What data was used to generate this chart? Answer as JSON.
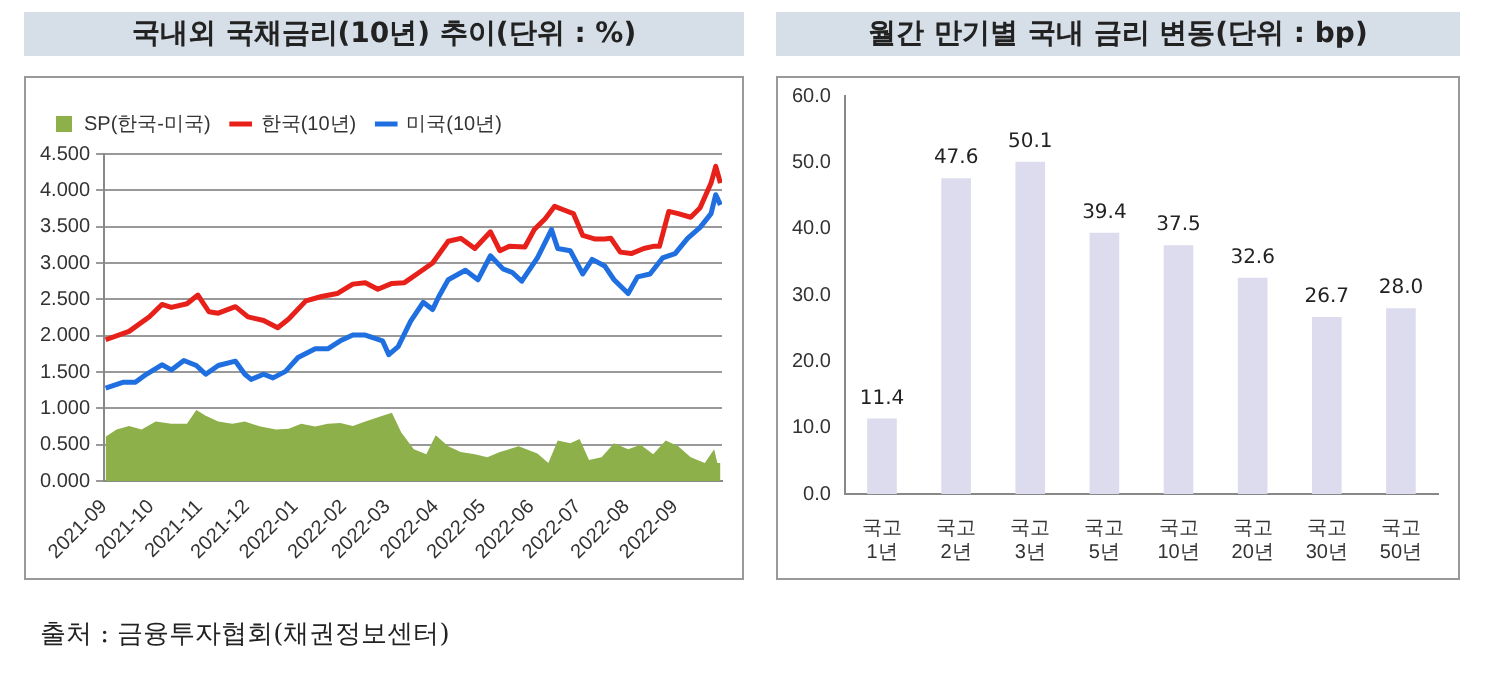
{
  "chart_data": [
    {
      "type": "line",
      "title": "국내외 국채금리(10년) 추이(단위 : %)",
      "xlim": [
        "2021-09-01",
        "2022-10-01"
      ],
      "xticks": [
        "2021-09",
        "2021-10",
        "2021-11",
        "2021-12",
        "2022-01",
        "2022-02",
        "2022-03",
        "2022-04",
        "2022-05",
        "2022-06",
        "2022-07",
        "2022-08",
        "2022-09"
      ],
      "ylim": [
        0,
        4.5
      ],
      "yticks": [
        {
          "value": 0,
          "label": "0.000"
        },
        {
          "value": 0.5,
          "label": "0.500"
        },
        {
          "value": 1,
          "label": "1.000"
        },
        {
          "value": 1.5,
          "label": "1.500"
        },
        {
          "value": 2,
          "label": "2.000"
        },
        {
          "value": 2.5,
          "label": "2.500"
        },
        {
          "value": 3,
          "label": "3.000"
        },
        {
          "value": 3.5,
          "label": "3.500"
        },
        {
          "value": 4,
          "label": "4.000"
        },
        {
          "value": 4.5,
          "label": "4.500"
        }
      ],
      "grid": "y",
      "legend": "top left",
      "marker": "none",
      "annotations": [
        "출처 : 금융투자협회(채권정보센터)"
      ],
      "series": [
        {
          "name": "SP(한국-미국)",
          "type": "area",
          "color": "#8db04a",
          "x": [
            "2021-09-02",
            "2021-09-09",
            "2021-09-17",
            "2021-09-25",
            "2021-10-04",
            "2021-10-14",
            "2021-10-24",
            "2021-10-30",
            "2021-11-05",
            "2021-11-13",
            "2021-11-22",
            "2021-11-30",
            "2021-12-10",
            "2021-12-20",
            "2021-12-28",
            "2022-01-05",
            "2022-01-14",
            "2022-01-22",
            "2022-01-30",
            "2022-02-07",
            "2022-02-15",
            "2022-02-26",
            "2022-03-04",
            "2022-03-10",
            "2022-03-18",
            "2022-03-26",
            "2022-04-01",
            "2022-04-09",
            "2022-04-17",
            "2022-04-26",
            "2022-05-04",
            "2022-05-12",
            "2022-05-24",
            "2022-06-05",
            "2022-06-12",
            "2022-06-18",
            "2022-06-26",
            "2022-07-02",
            "2022-07-08",
            "2022-07-16",
            "2022-07-24",
            "2022-08-02",
            "2022-08-10",
            "2022-08-18",
            "2022-08-26",
            "2022-09-03",
            "2022-09-11",
            "2022-09-20",
            "2022-09-26",
            "2022-09-28",
            "2022-09-30"
          ],
          "values": [
            0.61,
            0.71,
            0.76,
            0.71,
            0.82,
            0.79,
            0.79,
            0.98,
            0.9,
            0.82,
            0.79,
            0.82,
            0.75,
            0.71,
            0.72,
            0.79,
            0.75,
            0.79,
            0.8,
            0.76,
            0.82,
            0.9,
            0.94,
            0.67,
            0.44,
            0.37,
            0.63,
            0.48,
            0.4,
            0.37,
            0.33,
            0.4,
            0.48,
            0.38,
            0.25,
            0.56,
            0.52,
            0.58,
            0.29,
            0.33,
            0.52,
            0.44,
            0.5,
            0.37,
            0.56,
            0.48,
            0.33,
            0.25,
            0.44,
            0.25,
            0.25
          ]
        },
        {
          "name": "한국(10년)",
          "type": "line",
          "color": "#e8201a",
          "x": [
            "2021-09-02",
            "2021-09-17",
            "2021-09-30",
            "2021-10-08",
            "2021-10-14",
            "2021-10-24",
            "2021-10-31",
            "2021-11-07",
            "2021-11-13",
            "2021-11-24",
            "2021-12-02",
            "2021-12-12",
            "2021-12-21",
            "2021-12-28",
            "2022-01-08",
            "2022-01-18",
            "2022-01-28",
            "2022-02-07",
            "2022-02-15",
            "2022-02-23",
            "2022-03-04",
            "2022-03-12",
            "2022-03-20",
            "2022-03-30",
            "2022-04-09",
            "2022-04-17",
            "2022-04-26",
            "2022-05-06",
            "2022-05-12",
            "2022-05-18",
            "2022-05-28",
            "2022-06-03",
            "2022-06-10",
            "2022-06-16",
            "2022-06-22",
            "2022-06-28",
            "2022-07-04",
            "2022-07-12",
            "2022-07-18",
            "2022-07-22",
            "2022-07-28",
            "2022-08-04",
            "2022-08-12",
            "2022-08-18",
            "2022-08-22",
            "2022-08-28",
            "2022-09-03",
            "2022-09-11",
            "2022-09-17",
            "2022-09-24",
            "2022-09-27",
            "2022-09-30"
          ],
          "values": [
            1.945,
            2.06,
            2.26,
            2.43,
            2.39,
            2.44,
            2.56,
            2.33,
            2.31,
            2.4,
            2.26,
            2.21,
            2.11,
            2.23,
            2.48,
            2.54,
            2.58,
            2.71,
            2.73,
            2.64,
            2.72,
            2.73,
            2.85,
            3.0,
            3.3,
            3.34,
            3.2,
            3.43,
            3.17,
            3.23,
            3.22,
            3.46,
            3.61,
            3.78,
            3.73,
            3.68,
            3.38,
            3.33,
            3.33,
            3.34,
            3.15,
            3.13,
            3.2,
            3.23,
            3.23,
            3.71,
            3.68,
            3.63,
            3.76,
            4.1,
            4.33,
            4.1
          ]
        },
        {
          "name": "미국(10년)",
          "type": "line",
          "color": "#1f6fe0",
          "x": [
            "2021-09-02",
            "2021-09-13",
            "2021-09-21",
            "2021-09-28",
            "2021-10-08",
            "2021-10-14",
            "2021-10-22",
            "2021-10-30",
            "2021-11-05",
            "2021-11-13",
            "2021-11-24",
            "2021-11-30",
            "2021-12-04",
            "2021-12-12",
            "2021-12-18",
            "2021-12-26",
            "2022-01-03",
            "2022-01-14",
            "2022-01-22",
            "2022-01-30",
            "2022-02-07",
            "2022-02-15",
            "2022-02-26",
            "2022-03-02",
            "2022-03-08",
            "2022-03-16",
            "2022-03-24",
            "2022-03-30",
            "2022-04-03",
            "2022-04-09",
            "2022-04-20",
            "2022-04-28",
            "2022-05-06",
            "2022-05-14",
            "2022-05-20",
            "2022-05-26",
            "2022-06-05",
            "2022-06-14",
            "2022-06-18",
            "2022-06-26",
            "2022-07-04",
            "2022-07-10",
            "2022-07-18",
            "2022-07-24",
            "2022-08-02",
            "2022-08-08",
            "2022-08-16",
            "2022-08-24",
            "2022-09-01",
            "2022-09-09",
            "2022-09-17",
            "2022-09-24",
            "2022-09-27",
            "2022-09-30"
          ],
          "values": [
            1.28,
            1.36,
            1.36,
            1.47,
            1.6,
            1.53,
            1.66,
            1.59,
            1.47,
            1.59,
            1.65,
            1.47,
            1.4,
            1.47,
            1.42,
            1.51,
            1.7,
            1.82,
            1.82,
            1.93,
            2.01,
            2.01,
            1.93,
            1.74,
            1.85,
            2.2,
            2.46,
            2.36,
            2.54,
            2.77,
            2.9,
            2.77,
            3.1,
            2.92,
            2.87,
            2.75,
            3.07,
            3.46,
            3.2,
            3.17,
            2.85,
            3.05,
            2.96,
            2.77,
            2.58,
            2.81,
            2.85,
            3.07,
            3.13,
            3.34,
            3.49,
            3.68,
            3.94,
            3.8
          ]
        }
      ]
    },
    {
      "type": "bar",
      "title": "월간 만기별 국내 금리 변동(단위 : bp)",
      "categories": [
        "국고 1년",
        "국고 2년",
        "국고 3년",
        "국고 5년",
        "국고 10년",
        "국고 20년",
        "국고 30년",
        "국고 50년"
      ],
      "values": [
        11.4,
        47.6,
        50.1,
        39.4,
        37.5,
        32.6,
        26.7,
        28.0
      ],
      "value_labels": [
        "11.4",
        "47.6",
        "50.1",
        "39.4",
        "37.5",
        "32.6",
        "26.7",
        "28.0"
      ],
      "color": "#dcdcee",
      "ylim": [
        0,
        60
      ],
      "yticks": [
        {
          "value": 0,
          "label": "0.0"
        },
        {
          "value": 10,
          "label": "10.0"
        },
        {
          "value": 20,
          "label": "20.0"
        },
        {
          "value": 30,
          "label": "30.0"
        },
        {
          "value": 40,
          "label": "40.0"
        },
        {
          "value": 50,
          "label": "50.0"
        },
        {
          "value": 60,
          "label": "60.0"
        }
      ],
      "grid": false
    }
  ]
}
